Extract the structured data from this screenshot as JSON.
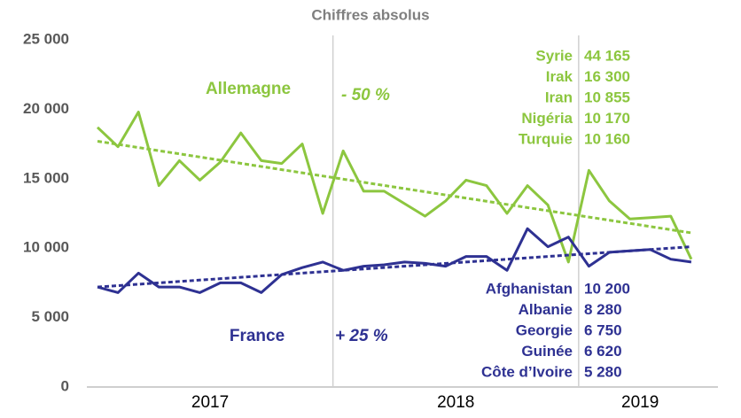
{
  "chart_data": {
    "type": "line",
    "title": "Chiffres absolus",
    "categories": [
      null,
      null,
      null,
      null,
      null,
      null,
      null,
      null,
      null,
      null,
      null,
      null,
      null,
      null,
      null,
      null,
      null,
      null,
      null,
      null,
      null,
      null,
      null,
      null,
      null,
      null,
      null,
      null,
      null,
      null
    ],
    "year_groups": [
      {
        "label": "2017",
        "start": 0,
        "end": 11
      },
      {
        "label": "2018",
        "start": 12,
        "end": 23
      },
      {
        "label": "2019",
        "start": 24,
        "end": 29
      }
    ],
    "series": [
      {
        "name": "Allemagne",
        "color": "#8cc63f",
        "change": "- 50 %",
        "values": [
          18700,
          17300,
          19800,
          14500,
          16300,
          14900,
          16200,
          18300,
          16300,
          16100,
          17500,
          12500,
          17000,
          14100,
          14100,
          13200,
          12300,
          13400,
          14900,
          14500,
          12500,
          14500,
          13100,
          9000,
          15600,
          13400,
          12100,
          12200,
          12300,
          9200
        ],
        "trend": {
          "start": 17700,
          "end": 11100
        },
        "top_countries": [
          [
            "Syrie",
            "44 165"
          ],
          [
            "Irak",
            "16 300"
          ],
          [
            "Iran",
            "10 855"
          ],
          [
            "Nigéria",
            "10 170"
          ],
          [
            "Turquie",
            "10 160"
          ]
        ]
      },
      {
        "name": "France",
        "color": "#2e3192",
        "change": "+ 25 %",
        "values": [
          7200,
          6800,
          8200,
          7200,
          7200,
          6800,
          7500,
          7500,
          6800,
          8100,
          8600,
          9000,
          8400,
          8700,
          8800,
          9000,
          8900,
          8700,
          9400,
          9400,
          8400,
          11400,
          10100,
          10800,
          8700,
          9700,
          9800,
          9900,
          9200,
          9000
        ],
        "trend": {
          "start": 7200,
          "end": 10100
        },
        "top_countries": [
          [
            "Afghanistan",
            "10 200"
          ],
          [
            "Albanie",
            "8 280"
          ],
          [
            "Georgie",
            "6 750"
          ],
          [
            "Guinée",
            "6 620"
          ],
          [
            "Côte d’Ivoire",
            "5 280"
          ]
        ]
      }
    ],
    "ylim": [
      0,
      25000
    ],
    "yticks": [
      0,
      {
        "value": 5000,
        "label": "5 000"
      },
      {
        "value": 10000,
        "label": "10 000"
      },
      {
        "value": 15000,
        "label": "15 000"
      },
      {
        "value": 20000,
        "label": "20 000"
      },
      {
        "value": 25000,
        "label": "25 000"
      }
    ],
    "grid": false
  }
}
